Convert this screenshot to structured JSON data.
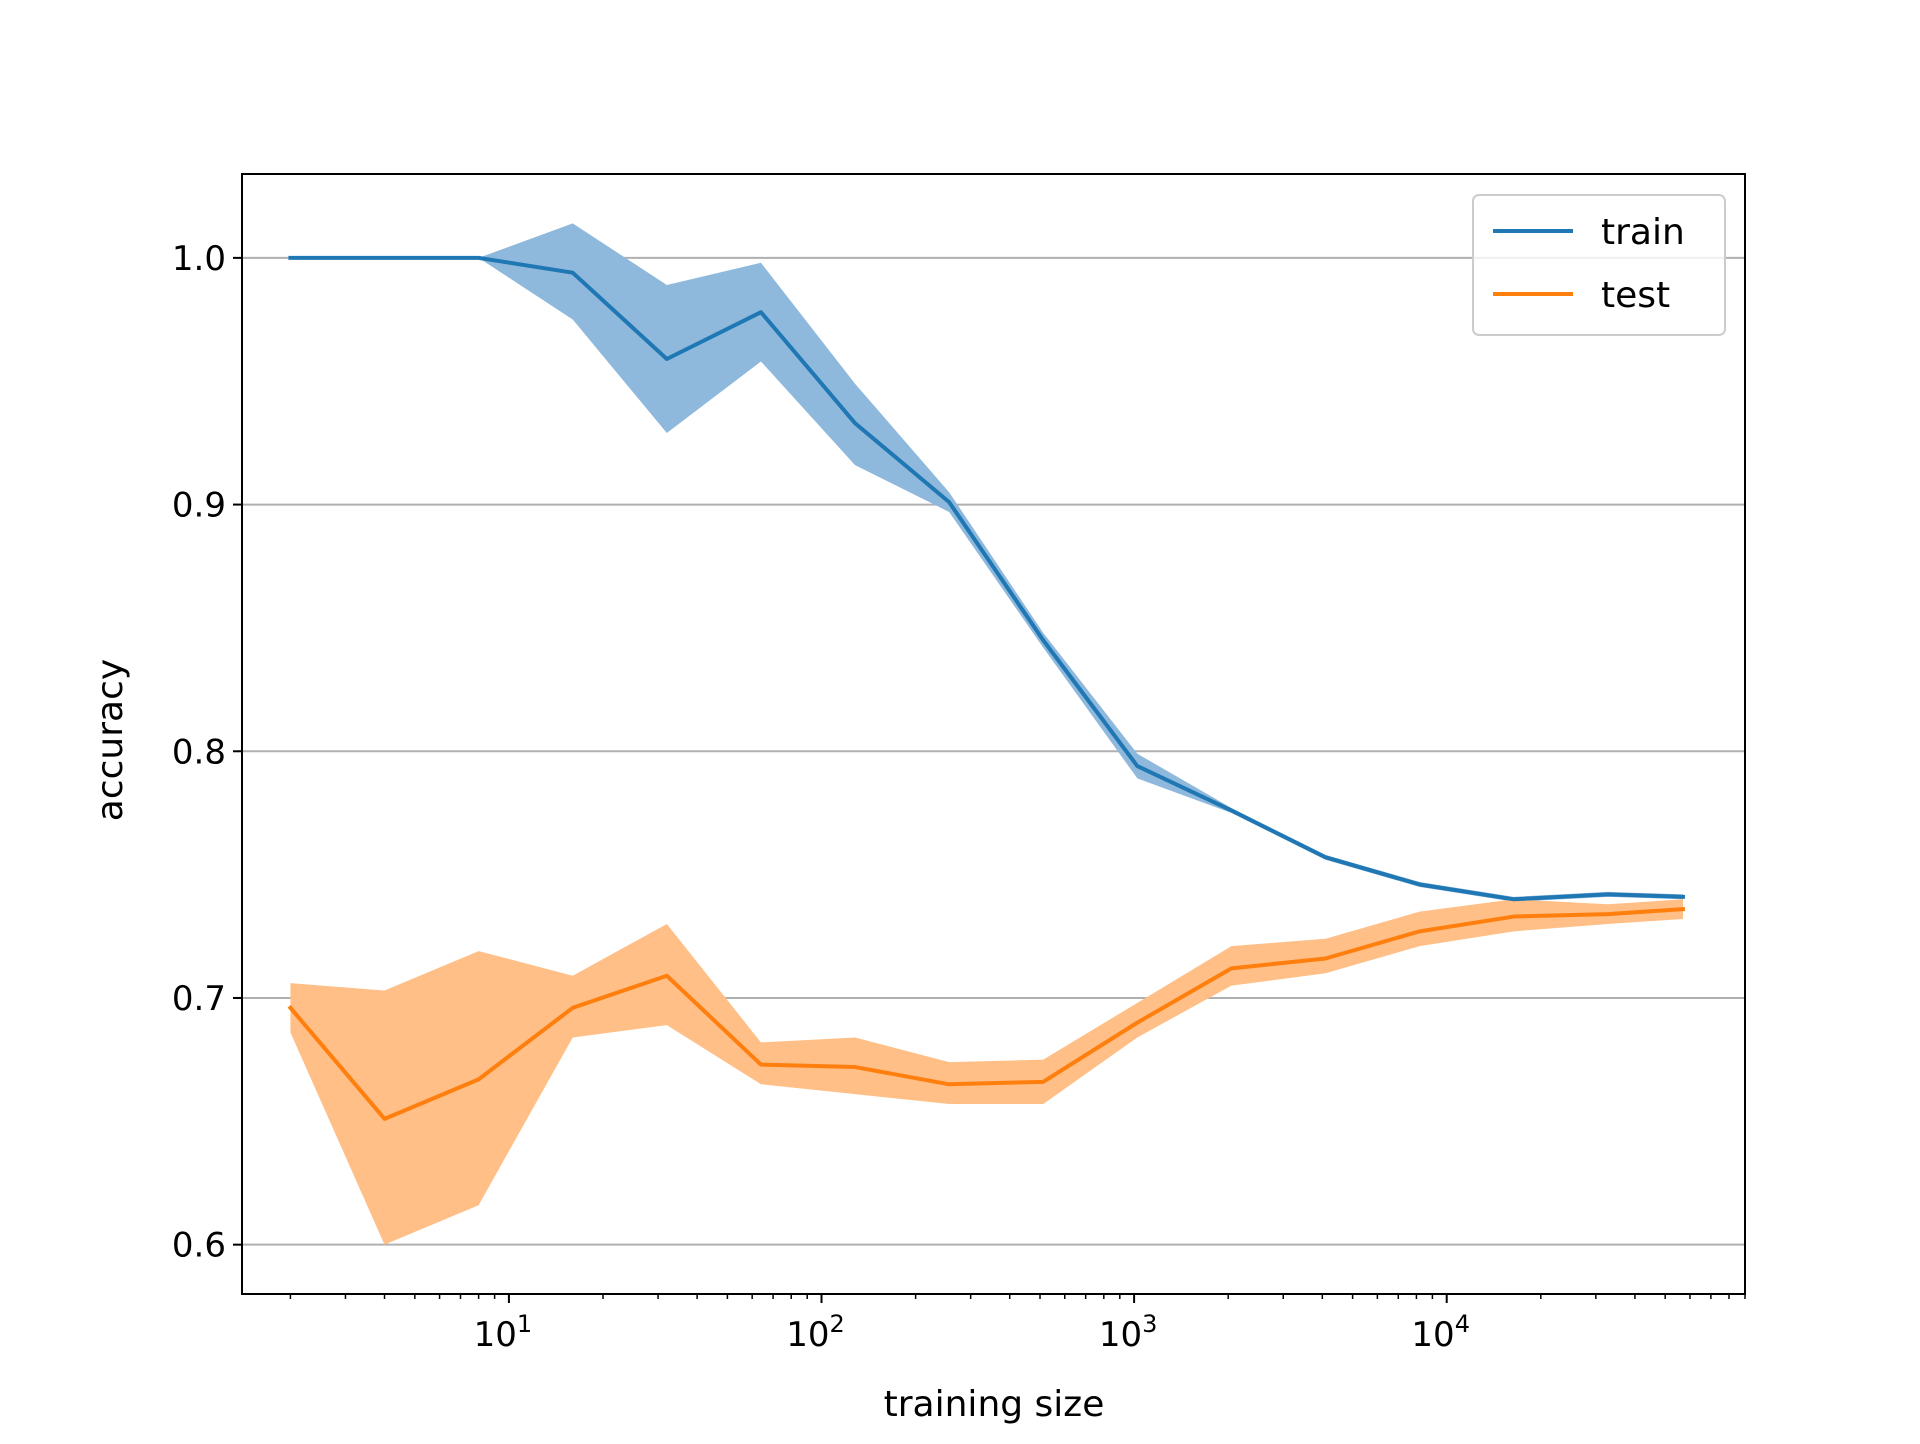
{
  "chart_data": {
    "type": "line",
    "title": "",
    "xlabel": "training size",
    "ylabel": "accuracy",
    "xscale": "log",
    "xlim": [
      1.4,
      90000
    ],
    "ylim": [
      0.58,
      1.034
    ],
    "grid": "y",
    "legend_position": "top-right",
    "y_ticks": [
      {
        "value": 0.6,
        "label": "0.6"
      },
      {
        "value": 0.7,
        "label": "0.7"
      },
      {
        "value": 0.8,
        "label": "0.8"
      },
      {
        "value": 0.9,
        "label": "0.9"
      },
      {
        "value": 1.0,
        "label": "1.0"
      }
    ],
    "x_ticks": [
      {
        "value": 10,
        "base": "10",
        "exp": "1"
      },
      {
        "value": 100,
        "base": "10",
        "exp": "2"
      },
      {
        "value": 1000,
        "base": "10",
        "exp": "3"
      },
      {
        "value": 10000,
        "base": "10",
        "exp": "4"
      }
    ],
    "x": [
      2,
      4,
      8,
      16,
      32,
      64,
      128,
      256,
      512,
      1024,
      2048,
      4096,
      8192,
      16384,
      32768,
      57000
    ],
    "series": [
      {
        "name": "train",
        "color": "#1f77b4",
        "band_color": "#8fb9dc",
        "values": [
          1.0,
          1.0,
          1.0,
          0.994,
          0.959,
          0.978,
          0.933,
          0.901,
          0.845,
          0.794,
          0.776,
          0.757,
          0.746,
          0.74,
          0.742,
          0.741
        ],
        "lower": [
          1.0,
          1.0,
          1.0,
          0.975,
          0.929,
          0.958,
          0.916,
          0.897,
          0.842,
          0.789,
          0.775,
          0.756,
          0.745,
          0.739,
          0.741,
          0.74
        ],
        "upper": [
          1.0,
          1.0,
          1.0,
          1.014,
          0.989,
          0.998,
          0.949,
          0.905,
          0.848,
          0.799,
          0.777,
          0.758,
          0.747,
          0.741,
          0.743,
          0.742
        ]
      },
      {
        "name": "test",
        "color": "#ff7f0e",
        "band_color": "#ffbf86",
        "values": [
          0.696,
          0.651,
          0.667,
          0.696,
          0.709,
          0.673,
          0.672,
          0.665,
          0.666,
          0.69,
          0.712,
          0.716,
          0.727,
          0.733,
          0.734,
          0.736
        ],
        "lower": [
          0.686,
          0.6,
          0.616,
          0.684,
          0.689,
          0.665,
          0.661,
          0.657,
          0.657,
          0.684,
          0.705,
          0.71,
          0.721,
          0.727,
          0.73,
          0.732
        ],
        "upper": [
          0.706,
          0.703,
          0.719,
          0.709,
          0.73,
          0.682,
          0.684,
          0.674,
          0.675,
          0.698,
          0.721,
          0.724,
          0.735,
          0.74,
          0.738,
          0.74
        ]
      }
    ]
  }
}
